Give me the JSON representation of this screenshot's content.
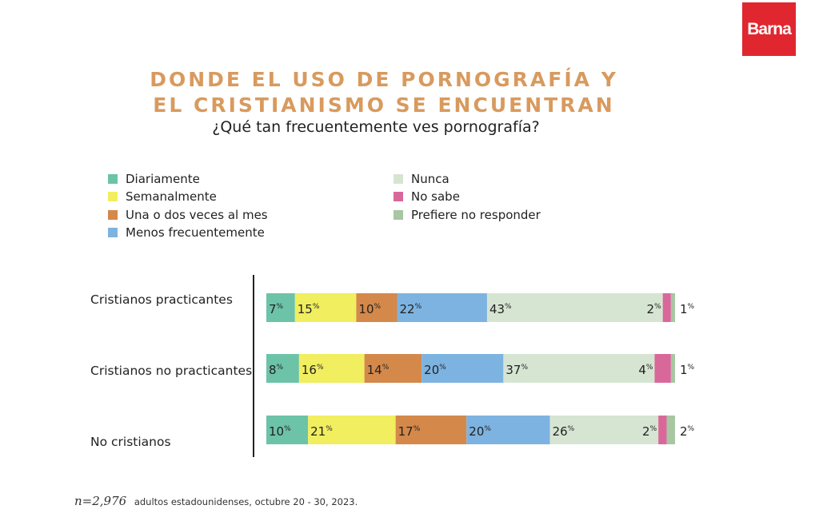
{
  "brand": {
    "logo_text": "Barna",
    "logo_color": "#e0272f"
  },
  "header": {
    "title_line1": "DONDE EL USO DE PORNOGRAFÍA Y",
    "title_line2": "EL CRISTIANISMO SE ENCUENTRAN",
    "subtitle": "¿Qué tan frecuentemente ves pornografía?"
  },
  "legend": [
    {
      "label": "Diariamente",
      "color": "#6cc3a8"
    },
    {
      "label": "Semanalmente",
      "color": "#f1ee5f"
    },
    {
      "label": "Una o dos veces al mes",
      "color": "#d4884a"
    },
    {
      "label": "Menos frecuentemente",
      "color": "#7db3e0"
    },
    {
      "label": "Nunca",
      "color": "#d6e5d2"
    },
    {
      "label": "No sabe",
      "color": "#d9689a"
    },
    {
      "label": "Prefiere no responder",
      "color": "#a7c6a2"
    }
  ],
  "chart_data": {
    "type": "bar",
    "orientation": "horizontal",
    "stacked": true,
    "unit": "%",
    "categories": [
      "Cristianos practicantes",
      "Cristianos no practicantes",
      "No cristianos"
    ],
    "series": [
      {
        "name": "Diariamente",
        "values": [
          7,
          8,
          10
        ]
      },
      {
        "name": "Semanalmente",
        "values": [
          15,
          16,
          21
        ]
      },
      {
        "name": "Una o dos veces al mes",
        "values": [
          10,
          14,
          17
        ]
      },
      {
        "name": "Menos frecuentemente",
        "values": [
          22,
          20,
          20
        ]
      },
      {
        "name": "Nunca",
        "values": [
          43,
          37,
          26
        ]
      },
      {
        "name": "No sabe",
        "values": [
          2,
          4,
          2
        ]
      },
      {
        "name": "Prefiere no responder",
        "values": [
          1,
          1,
          2
        ]
      }
    ]
  },
  "footnote": {
    "n_label": "n=2,976",
    "text": "adultos estadounidenses, octubre 20 - 30, 2023."
  }
}
